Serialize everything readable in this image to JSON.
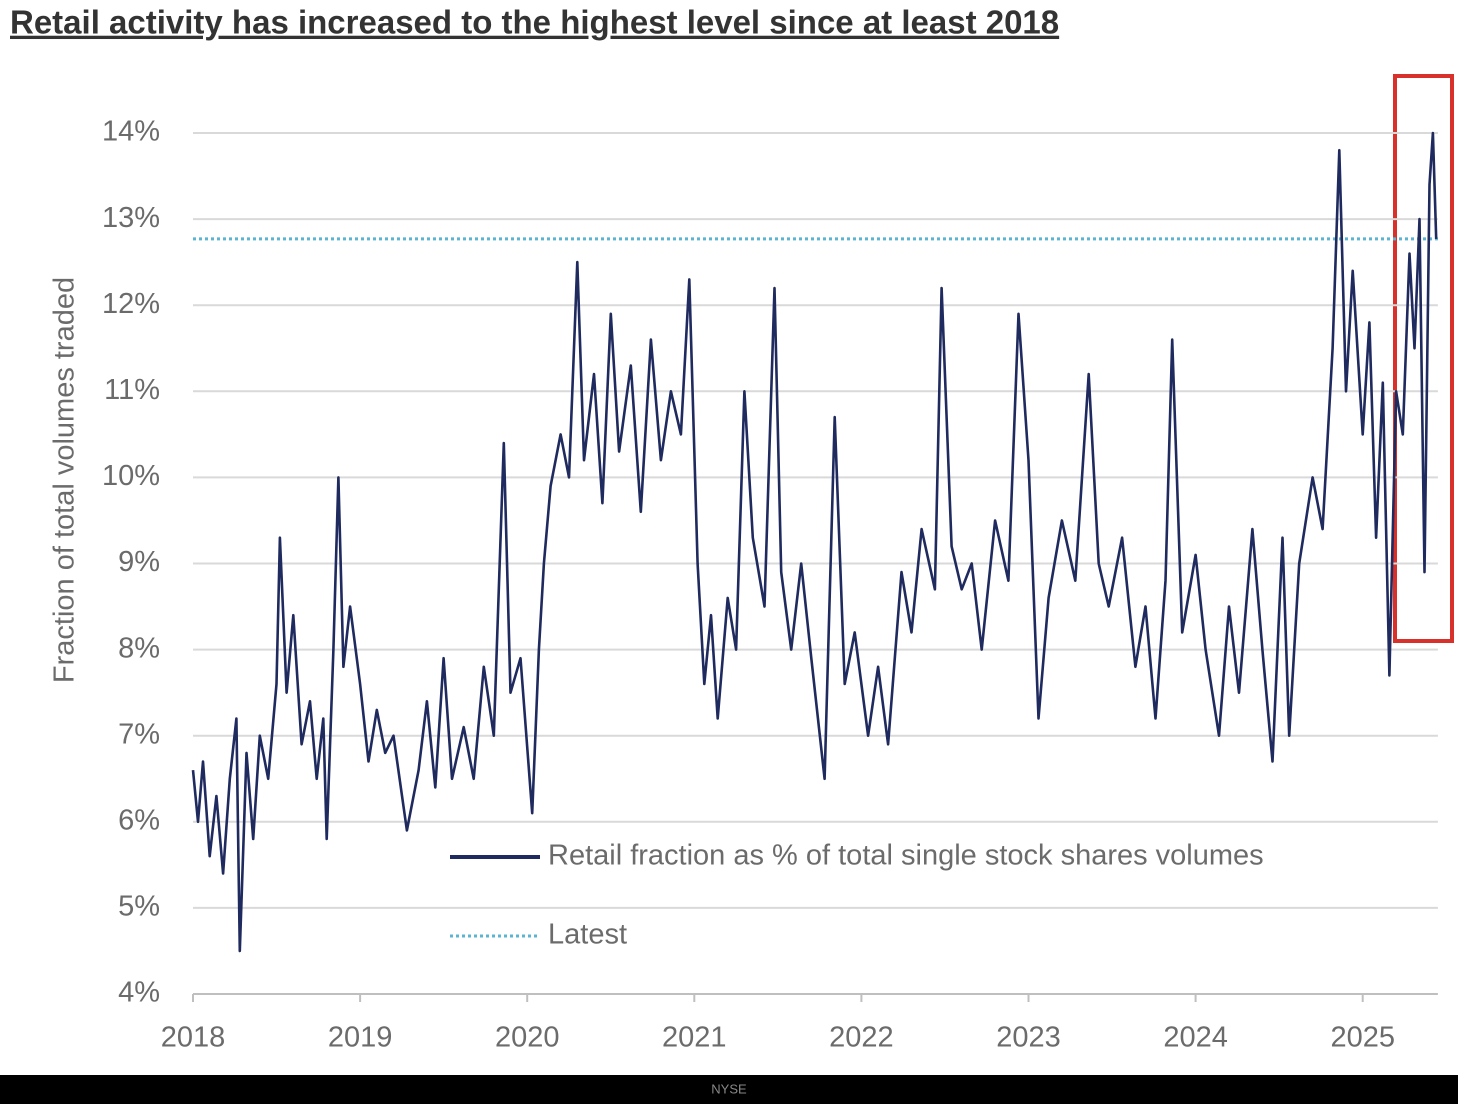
{
  "chart_data": {
    "type": "line",
    "title": "Retail activity has increased to the highest level since at least 2018",
    "y_label": "Fraction of total volumes traded",
    "source": "NYSE",
    "xlim": [
      2018,
      2025.45
    ],
    "xticks": [
      2018,
      2019,
      2020,
      2021,
      2022,
      2023,
      2024,
      2025
    ],
    "ylim": [
      4,
      14
    ],
    "yticks": [
      {
        "value": 4,
        "label": "4%"
      },
      {
        "value": 5,
        "label": "5%"
      },
      {
        "value": 6,
        "label": "6%"
      },
      {
        "value": 7,
        "label": "7%"
      },
      {
        "value": 8,
        "label": "8%"
      },
      {
        "value": 9,
        "label": "9%"
      },
      {
        "value": 10,
        "label": "10%"
      },
      {
        "value": 11,
        "label": "11%"
      },
      {
        "value": 12,
        "label": "12%"
      },
      {
        "value": 13,
        "label": "13%"
      },
      {
        "value": 14,
        "label": "14%"
      }
    ],
    "grid": true,
    "series": [
      {
        "name": "Retail fraction as % of total single stock shares volumes",
        "color": "#1f2a5e",
        "x": [
          2018.0,
          2018.03,
          2018.06,
          2018.1,
          2018.14,
          2018.18,
          2018.22,
          2018.26,
          2018.28,
          2018.32,
          2018.36,
          2018.4,
          2018.45,
          2018.5,
          2018.52,
          2018.56,
          2018.6,
          2018.65,
          2018.7,
          2018.74,
          2018.78,
          2018.8,
          2018.84,
          2018.87,
          2018.9,
          2018.94,
          2019.0,
          2019.05,
          2019.1,
          2019.15,
          2019.2,
          2019.28,
          2019.35,
          2019.4,
          2019.45,
          2019.5,
          2019.55,
          2019.62,
          2019.68,
          2019.74,
          2019.8,
          2019.86,
          2019.9,
          2019.96,
          2020.03,
          2020.07,
          2020.1,
          2020.14,
          2020.2,
          2020.25,
          2020.3,
          2020.34,
          2020.4,
          2020.45,
          2020.5,
          2020.55,
          2020.62,
          2020.68,
          2020.74,
          2020.8,
          2020.86,
          2020.92,
          2020.97,
          2021.02,
          2021.06,
          2021.1,
          2021.14,
          2021.2,
          2021.25,
          2021.3,
          2021.35,
          2021.42,
          2021.48,
          2021.52,
          2021.58,
          2021.64,
          2021.7,
          2021.78,
          2021.84,
          2021.9,
          2021.96,
          2022.04,
          2022.1,
          2022.16,
          2022.24,
          2022.3,
          2022.36,
          2022.44,
          2022.48,
          2022.54,
          2022.6,
          2022.66,
          2022.72,
          2022.8,
          2022.88,
          2022.94,
          2023.0,
          2023.06,
          2023.12,
          2023.2,
          2023.28,
          2023.36,
          2023.42,
          2023.48,
          2023.56,
          2023.64,
          2023.7,
          2023.76,
          2023.82,
          2023.86,
          2023.92,
          2024.0,
          2024.06,
          2024.14,
          2024.2,
          2024.26,
          2024.34,
          2024.4,
          2024.46,
          2024.52,
          2024.56,
          2024.62,
          2024.7,
          2024.76,
          2024.82,
          2024.86,
          2024.9,
          2024.94,
          2025.0,
          2025.04,
          2025.08,
          2025.12,
          2025.16,
          2025.2,
          2025.24,
          2025.28,
          2025.31,
          2025.34,
          2025.37,
          2025.4,
          2025.42,
          2025.44
        ],
        "values": [
          6.6,
          6.0,
          6.7,
          5.6,
          6.3,
          5.4,
          6.5,
          7.2,
          4.5,
          6.8,
          5.8,
          7.0,
          6.5,
          7.6,
          9.3,
          7.5,
          8.4,
          6.9,
          7.4,
          6.5,
          7.2,
          5.8,
          8.0,
          10.0,
          7.8,
          8.5,
          7.6,
          6.7,
          7.3,
          6.8,
          7.0,
          5.9,
          6.6,
          7.4,
          6.4,
          7.9,
          6.5,
          7.1,
          6.5,
          7.8,
          7.0,
          10.4,
          7.5,
          7.9,
          6.1,
          8.0,
          9.0,
          9.9,
          10.5,
          10.0,
          12.5,
          10.2,
          11.2,
          9.7,
          11.9,
          10.3,
          11.3,
          9.6,
          11.6,
          10.2,
          11.0,
          10.5,
          12.3,
          9.0,
          7.6,
          8.4,
          7.2,
          8.6,
          8.0,
          11.0,
          9.3,
          8.5,
          12.2,
          8.9,
          8.0,
          9.0,
          7.9,
          6.5,
          10.7,
          7.6,
          8.2,
          7.0,
          7.8,
          6.9,
          8.9,
          8.2,
          9.4,
          8.7,
          12.2,
          9.2,
          8.7,
          9.0,
          8.0,
          9.5,
          8.8,
          11.9,
          10.2,
          7.2,
          8.6,
          9.5,
          8.8,
          11.2,
          9.0,
          8.5,
          9.3,
          7.8,
          8.5,
          7.2,
          8.8,
          11.6,
          8.2,
          9.1,
          8.0,
          7.0,
          8.5,
          7.5,
          9.4,
          8.0,
          6.7,
          9.3,
          7.0,
          9.0,
          10.0,
          9.4,
          11.5,
          13.8,
          11.0,
          12.4,
          10.5,
          11.8,
          9.3,
          11.1,
          7.7,
          11.0,
          10.5,
          12.6,
          11.5,
          13.0,
          8.9,
          13.4,
          14.0,
          12.77
        ]
      },
      {
        "name": "Latest",
        "color": "#5ab4d2",
        "dotted": true,
        "x": [
          2018.0,
          2025.45
        ],
        "values": [
          12.77,
          12.77
        ]
      }
    ]
  }
}
